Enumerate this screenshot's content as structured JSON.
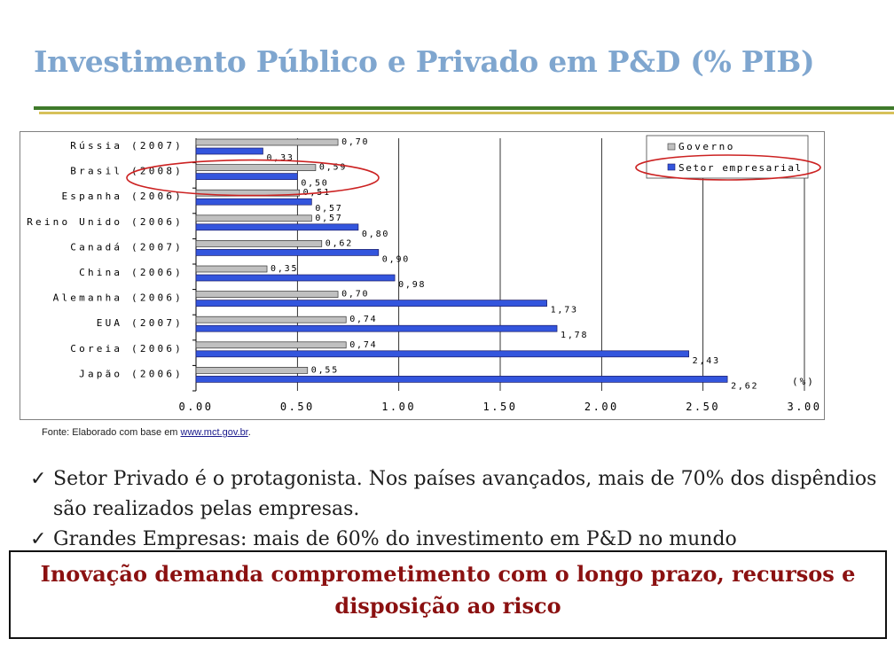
{
  "slide": {
    "title": "Investimento Público e Privado em P&D (% PIB)",
    "source_prefix": "Fonte: Elaborado com base em ",
    "source_link": "www.mct.gov.br",
    "source_suffix": ".",
    "bullets": [
      "Setor Privado é o protagonista. Nos países avançados, mais de 70% dos dispêndios são realizados pelas empresas.",
      "Grandes Empresas: mais de 60% do investimento em P&D no mundo"
    ],
    "bullet_mark": "ü",
    "conclusion": "Inovação demanda comprometimento com o longo prazo, recursos e disposição ao risco"
  },
  "colors": {
    "title": "#7fa6cf",
    "governo": "#c0c0c0",
    "setor_empresarial": "#3355dd",
    "highlight_ellipse": "#cc2222",
    "conclusion_text": "#8b1111"
  },
  "chart_data": {
    "type": "bar",
    "orientation": "horizontal",
    "categories": [
      "Rússia (2007)",
      "Brasil (2008)",
      "Espanha (2006)",
      "Reino Unido (2006)",
      "Canadá (2007)",
      "China (2006)",
      "Alemanha (2006)",
      "EUA (2007)",
      "Coreia (2006)",
      "Japão (2006)"
    ],
    "series": [
      {
        "name": "Governo",
        "values": [
          0.7,
          0.59,
          0.51,
          0.57,
          0.62,
          0.35,
          0.7,
          0.74,
          0.74,
          0.55
        ],
        "labels": [
          "0,70",
          "0,59",
          "0,51",
          "0,57",
          "0,62",
          "0,35",
          "0,70",
          "0,74",
          "0,74",
          "0,55"
        ]
      },
      {
        "name": "Setor empresarial",
        "values": [
          0.33,
          0.5,
          0.57,
          0.8,
          0.9,
          0.98,
          1.73,
          1.78,
          2.43,
          2.62
        ],
        "labels": [
          "0,33",
          "0,50",
          "0,57",
          "0,80",
          "0,90",
          "0,98",
          "1,73",
          "1,78",
          "2,43",
          "2,62"
        ]
      }
    ],
    "xlim": [
      0,
      3.0
    ],
    "xticks": [
      0,
      0.5,
      1.0,
      1.5,
      2.0,
      2.5,
      3.0
    ],
    "xtick_labels": [
      "0.00",
      "0.50",
      "1.00",
      "1.50",
      "2.00",
      "2.50",
      "3.00"
    ],
    "unit_label": "(%)",
    "grid": "vertical",
    "legend": "top-right",
    "highlighted_category": "Brasil (2008)"
  }
}
